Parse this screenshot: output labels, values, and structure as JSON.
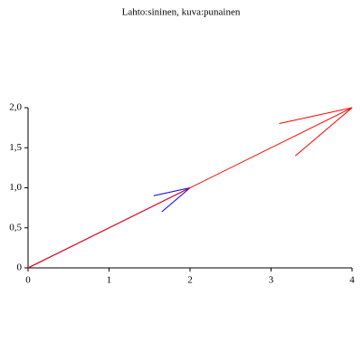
{
  "chart_data": {
    "type": "arrows",
    "title": "Lahto:sininen, kuva:punainen",
    "series": [
      {
        "color": "#0000ff",
        "x": [
          0,
          2
        ],
        "values": [
          0,
          1
        ]
      },
      {
        "color": "#ff0000",
        "x": [
          0,
          4
        ],
        "values": [
          0,
          2
        ]
      }
    ],
    "xlim": [
      0,
      4
    ],
    "xticks": [
      0,
      1,
      2,
      3,
      4
    ],
    "ylim": [
      0,
      2
    ],
    "yticks": [
      0,
      {
        "value": 0.5,
        "label": "0,5"
      },
      {
        "value": 1,
        "label": "1,0"
      },
      {
        "value": 1.5,
        "label": "1,5"
      },
      {
        "value": 2,
        "label": "2,0"
      }
    ]
  }
}
